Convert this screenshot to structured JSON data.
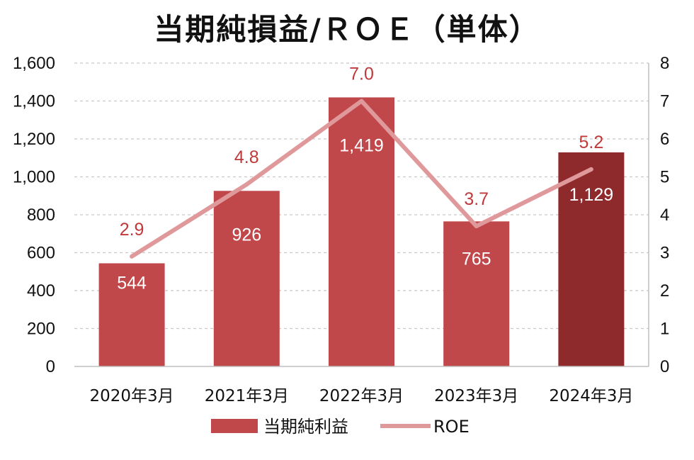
{
  "chart_data": {
    "type": "bar",
    "title": "当期純損益/ＲＯＥ（単体）",
    "categories": [
      "2020年3月",
      "2021年3月",
      "2022年3月",
      "2023年3月",
      "2024年3月"
    ],
    "series": [
      {
        "name": "当期純利益",
        "type": "bar",
        "axis": "left",
        "values": [
          544,
          926,
          1419,
          765,
          1129
        ],
        "value_labels": [
          "544",
          "926",
          "1,419",
          "765",
          "1,129"
        ],
        "color": "#c0474a",
        "highlight_color": "#8e2a2c",
        "highlight_index": 4
      },
      {
        "name": "ROE",
        "type": "line",
        "axis": "right",
        "values": [
          2.9,
          4.8,
          7.0,
          3.7,
          5.2
        ],
        "value_labels": [
          "2.9",
          "4.8",
          "7.0",
          "3.7",
          "5.2"
        ],
        "color": "#e0999b",
        "label_color": "#c0393b"
      }
    ],
    "y_left": {
      "min": 0,
      "max": 1600,
      "ticks": [
        0,
        200,
        400,
        600,
        800,
        1000,
        1200,
        1400,
        1600
      ],
      "tick_labels": [
        "0",
        "200",
        "400",
        "600",
        "800",
        "1,000",
        "1,200",
        "1,400",
        "1,600"
      ]
    },
    "y_right": {
      "min": 0,
      "max": 8,
      "ticks": [
        0,
        1,
        2,
        3,
        4,
        5,
        6,
        7,
        8
      ],
      "tick_labels": [
        "0",
        "1",
        "2",
        "3",
        "4",
        "5",
        "6",
        "7",
        "8"
      ]
    },
    "grid": "dashed-horizontal",
    "legend": "bottom-center"
  }
}
